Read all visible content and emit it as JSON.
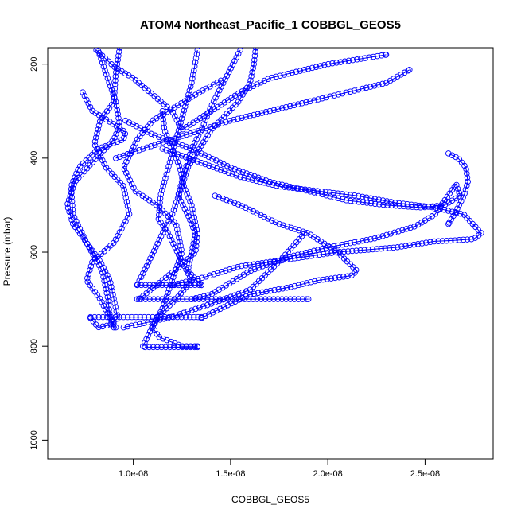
{
  "chart_data": {
    "type": "scatter",
    "title": "ATOM4 Northeast_Pacific_1 COBBGL_GEOS5",
    "xlabel": "COBBGL_GEOS5",
    "ylabel": "Pressure (mbar)",
    "xlim": [
      5.6e-09,
      2.85e-08
    ],
    "ylim": [
      1040,
      165
    ],
    "y_reversed": true,
    "grid": false,
    "legend": "none",
    "color": "#0000ff",
    "marker": "open-circle",
    "x_ticks": [
      {
        "value": 1e-08,
        "label": "1.0e-08"
      },
      {
        "value": 1.5e-08,
        "label": "1.5e-08"
      },
      {
        "value": 2e-08,
        "label": "2.0e-08"
      },
      {
        "value": 2.5e-08,
        "label": "2.5e-08"
      }
    ],
    "y_ticks": [
      {
        "value": 200,
        "label": "200"
      },
      {
        "value": 400,
        "label": "400"
      },
      {
        "value": 600,
        "label": "600"
      },
      {
        "value": 800,
        "label": "800"
      },
      {
        "value": 1000,
        "label": "1000"
      }
    ],
    "series": [
      {
        "x": [
          8.2e-09,
          8.6e-09,
          9.1e-09,
          9.3e-09,
          9e-09,
          8.1e-09,
          7e-09,
          6.6e-09,
          6.9e-09,
          7.6e-09,
          8.3e-09,
          8.8e-09,
          9e-09,
          9.2e-09,
          8.8e-09,
          8.2e-09,
          7.8e-09
        ],
        "y": [
          172,
          220,
          280,
          330,
          360,
          400,
          450,
          500,
          540,
          580,
          620,
          660,
          700,
          740,
          755,
          760,
          740
        ]
      },
      {
        "x": [
          7.4e-09,
          7.9e-09,
          8.7e-09,
          9.6e-09,
          9.5e-09,
          8.2e-09,
          7.2e-09,
          6.8e-09,
          6.9e-09,
          7.6e-09,
          8.4e-09,
          8.7e-09,
          8.8e-09,
          9e-09
        ],
        "y": [
          260,
          300,
          320,
          345,
          360,
          380,
          420,
          460,
          520,
          580,
          640,
          700,
          740,
          760
        ]
      },
      {
        "x": [
          9.3e-09,
          9.1e-09,
          9e-09,
          8.3e-09,
          8e-09,
          8.6e-09,
          9.5e-09,
          9.8e-09,
          9e-09,
          7.9e-09,
          7.6e-09,
          8.3e-09,
          8.8e-09,
          9.1e-09
        ],
        "y": [
          165,
          220,
          280,
          320,
          370,
          420,
          460,
          520,
          580,
          620,
          660,
          700,
          740,
          760
        ]
      },
      {
        "x": [
          1.45e-08,
          1.34e-08,
          1.22e-08,
          1.1e-08,
          1.02e-08,
          9.5e-09,
          1.01e-08,
          1.12e-08,
          1.22e-08,
          1.25e-08,
          1.2e-08,
          1.15e-08,
          1.1e-08,
          1.13e-08,
          1.25e-08,
          1.33e-08
        ],
        "y": [
          235,
          260,
          290,
          320,
          360,
          420,
          470,
          500,
          540,
          600,
          660,
          720,
          760,
          780,
          800,
          800
        ]
      },
      {
        "x": [
          1.33e-08,
          1.3e-08,
          1.26e-08,
          1.22e-08,
          1.18e-08,
          1.14e-08,
          1.13e-08,
          1.18e-08,
          1.25e-08,
          1.3e-08,
          1.22e-08,
          1.12e-08,
          1.05e-08
        ],
        "y": [
          170,
          240,
          300,
          360,
          420,
          480,
          530,
          560,
          620,
          660,
          700,
          740,
          800
        ]
      },
      {
        "x": [
          1.15e-08,
          1.16e-08,
          1.2e-08,
          1.24e-08,
          1.26e-08,
          1.3e-08,
          1.33e-08,
          1.32e-08,
          1.24e-08,
          1.18e-08,
          1.09e-08,
          1.03e-08
        ],
        "y": [
          300,
          340,
          380,
          420,
          460,
          500,
          560,
          600,
          630,
          650,
          680,
          700
        ]
      },
      {
        "x": [
          1.55e-08,
          1.5e-08,
          1.45e-08,
          1.4e-08,
          1.35e-08,
          1.3e-08,
          1.27e-08,
          1.23e-08,
          1.28e-08,
          1.32e-08,
          1.3e-08,
          1.28e-08,
          1.35e-08
        ],
        "y": [
          170,
          210,
          250,
          290,
          340,
          380,
          420,
          480,
          520,
          560,
          600,
          640,
          670
        ]
      },
      {
        "x": [
          1.63e-08,
          1.62e-08,
          1.6e-08,
          1.54e-08,
          1.47e-08,
          1.4e-08,
          1.34e-08,
          1.28e-08,
          1.25e-08,
          1.2e-08,
          1.15e-08,
          1.08e-08,
          1.02e-08
        ],
        "y": [
          165,
          200,
          240,
          280,
          310,
          340,
          380,
          420,
          460,
          520,
          560,
          620,
          670
        ]
      },
      {
        "x": [
          8.1e-09,
          9e-09,
          1e-08,
          1.1e-08,
          1.2e-08,
          1.25e-08,
          1.4e-08,
          1.55e-08,
          1.7e-08,
          1.9e-08,
          2e-08,
          2.3e-08
        ],
        "y": [
          170,
          205,
          230,
          265,
          300,
          340,
          300,
          260,
          230,
          210,
          200,
          180
        ]
      },
      {
        "x": [
          9.1e-09,
          1.05e-08,
          1.2e-08,
          1.35e-08,
          1.5e-08,
          1.7e-08,
          1.9e-08,
          2.1e-08,
          2.3e-08,
          2.42e-08
        ],
        "y": [
          400,
          380,
          360,
          340,
          320,
          300,
          280,
          260,
          240,
          212
        ]
      },
      {
        "x": [
          1.15e-08,
          1.35e-08,
          1.55e-08,
          1.75e-08,
          1.95e-08,
          2.15e-08,
          2.35e-08,
          2.55e-08,
          2.7e-08,
          2.79e-08,
          2.75e-08,
          2.65e-08,
          2.55e-08,
          2.35e-08,
          2.05e-08,
          1.8e-08,
          1.55e-08,
          1.35e-08,
          1.2e-08
        ],
        "y": [
          380,
          410,
          440,
          460,
          470,
          480,
          495,
          505,
          520,
          560,
          572,
          575,
          577,
          590,
          600,
          615,
          630,
          655,
          670
        ]
      },
      {
        "x": [
          9.6e-09,
          1.1e-08,
          1.3e-08,
          1.5e-08,
          1.7e-08,
          1.9e-08,
          2.1e-08,
          2.3e-08,
          2.48e-08,
          2.6e-08,
          2.68e-08,
          2.66e-08,
          2.55e-08,
          2.45e-08,
          2.25e-08,
          2e-08,
          1.8e-08,
          1.6e-08,
          1.4e-08,
          1.3e-08
        ],
        "y": [
          320,
          350,
          380,
          420,
          450,
          470,
          490,
          500,
          505,
          500,
          480,
          455,
          520,
          545,
          570,
          590,
          610,
          640,
          690,
          700
        ]
      },
      {
        "x": [
          2.62e-08,
          2.67e-08,
          2.71e-08,
          2.72e-08,
          2.7e-08,
          2.65e-08,
          2.62e-08
        ],
        "y": [
          390,
          400,
          420,
          450,
          480,
          520,
          540
        ]
      },
      {
        "x": [
          1.42e-08,
          1.55e-08,
          1.65e-08,
          1.75e-08,
          1.9e-08,
          2.05e-08,
          2.15e-08,
          2.12e-08,
          1.95e-08,
          1.8e-08,
          1.6e-08,
          1.45e-08,
          1.35e-08
        ],
        "y": [
          480,
          500,
          520,
          540,
          560,
          600,
          640,
          650,
          660,
          675,
          690,
          720,
          740
        ]
      },
      {
        "x": [
          7.8e-09,
          9e-09,
          1.05e-08,
          1.2e-08,
          1.35e-08
        ],
        "y": [
          738,
          738,
          738,
          738,
          738
        ]
      },
      {
        "x": [
          1.02e-08,
          1.15e-08,
          1.3e-08,
          1.45e-08,
          1.6e-08,
          1.75e-08,
          1.9e-08
        ],
        "y": [
          700,
          700,
          700,
          700,
          700,
          700,
          700
        ]
      },
      {
        "x": [
          1.02e-08,
          1.1e-08,
          1.2e-08,
          1.25e-08,
          1.35e-08
        ],
        "y": [
          670,
          670,
          670,
          670,
          670
        ]
      },
      {
        "x": [
          1.06e-08,
          1.12e-08,
          1.2e-08,
          1.28e-08,
          1.33e-08
        ],
        "y": [
          802,
          802,
          802,
          802,
          802
        ]
      },
      {
        "x": [
          9.5e-09,
          1.18e-08,
          1.4e-08,
          1.6e-08,
          1.75e-08,
          1.88e-08
        ],
        "y": [
          760,
          740,
          710,
          680,
          620,
          560
        ]
      }
    ]
  }
}
